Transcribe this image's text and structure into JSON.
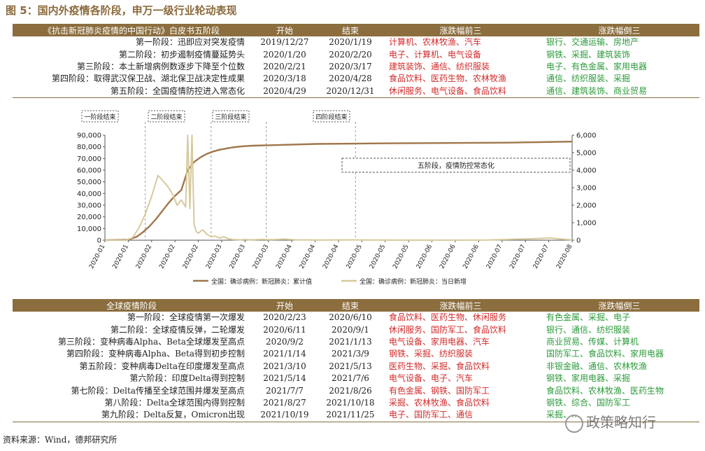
{
  "figure_title": "图 5：国内外疫情各阶段，申万一级行业轮动表现",
  "table1": {
    "headers": [
      "《抗击新冠肺炎疫情的中国行动》白皮书五阶段",
      "开始",
      "结束",
      "涨跌幅前三",
      "涨跌幅倒三"
    ],
    "rows": [
      {
        "phase": "第一阶段：迅即应对突发疫情",
        "start": "2019/12/27",
        "end": "2020/1/19",
        "top3": "计算机、农林牧渔、汽车",
        "bottom3": "银行、交通运输、房地产"
      },
      {
        "phase": "第二阶段：初步遏制疫情蔓延势头",
        "start": "2020/1/20",
        "end": "2020/2/20",
        "top3": "电子、计算机、电气设备",
        "bottom3": "钢铁、采掘、建筑装饰"
      },
      {
        "phase": "第三阶段：本土新增病例数逐步下降至个位数",
        "start": "2020/2/21",
        "end": "2020/3/17",
        "top3": "建筑装饰、通信、纺织服装",
        "bottom3": "电子、有色金属、家用电器"
      },
      {
        "phase": "第四阶段：取得武汉保卫战、湖北保卫战决定性成果",
        "start": "2020/3/18",
        "end": "2020/4/28",
        "top3": "食品饮料、医药生物、农林牧渔",
        "bottom3": "通信、纺织服装、采掘"
      },
      {
        "phase": "第五阶段：全国疫情防控进入常态化",
        "start": "2020/4/29",
        "end": "2020/12/31",
        "top3": "休闲服务、电气设备、食品饮料",
        "bottom3": "通信、建筑装饰、商业贸易"
      }
    ]
  },
  "table2": {
    "headers": [
      "全球疫情阶段",
      "开始",
      "结束",
      "涨跌幅前三",
      "涨跌幅倒三"
    ],
    "rows": [
      {
        "phase": "第一阶段：全球疫情第一次爆发",
        "start": "2020/2/23",
        "end": "2020/6/10",
        "top3": "食品饮料、医药生物、休闲服务",
        "bottom3": "有色金属、采掘、电子"
      },
      {
        "phase": "第二阶段：全球疫情反弹，二轮爆发",
        "start": "2020/6/11",
        "end": "2020/9/1",
        "top3": "休闲服务、国防军工、食品饮料",
        "bottom3": "银行、通信、纺织服装"
      },
      {
        "phase": "第三阶段：变种病毒Alpha、Beta全球爆发至高点",
        "start": "2020/9/2",
        "end": "2021/1/13",
        "top3": "电气设备、家用电器、汽车",
        "bottom3": "商业贸易、传媒、计算机"
      },
      {
        "phase": "第四阶段：变种病毒Alpha、Beta得到初步控制",
        "start": "2021/1/14",
        "end": "2021/3/9",
        "top3": "钢铁、采掘、纺织服装",
        "bottom3": "国防军工、食品饮料、家用电器"
      },
      {
        "phase": "第五阶段：变种病毒Delta在印度爆发至高点",
        "start": "2021/3/10",
        "end": "2021/5/13",
        "top3": "医药生物、采掘、食品饮料",
        "bottom3": "非银金融、通信、农林牧渔"
      },
      {
        "phase": "第六阶段：印度Delta得到控制",
        "start": "2021/5/14",
        "end": "2021/7/6",
        "top3": "电气设备、电子、汽车",
        "bottom3": "钢铁、家用电器、采掘"
      },
      {
        "phase": "第七阶段：Delta传播至全球范围并爆发至高点",
        "start": "2021/7/7",
        "end": "2021/8/26",
        "top3": "有色金属、钢铁、国防军工",
        "bottom3": "食品饮料、农林牧渔、医药生物"
      },
      {
        "phase": "第八阶段：Delta全球范围内得到控制",
        "start": "2021/8/27",
        "end": "2021/10/18",
        "top3": "采掘、农林牧渔、食品饮料",
        "bottom3": "钢铁、综合、国防军工"
      },
      {
        "phase": "第九阶段：Delta反复，Omicron出现",
        "start": "2021/10/19",
        "end": "2021/11/25",
        "top3": "电子、国防军工、通信",
        "bottom3": "采掘、…"
      }
    ]
  },
  "chart_data": {
    "type": "line",
    "title": "",
    "x_tick_labels": [
      "2020-01",
      "2020-01",
      "2020-02",
      "2020-02",
      "2020-02",
      "2020-03",
      "2020-03",
      "2020-03",
      "2020-04",
      "2020-04",
      "2020-04",
      "2020-05",
      "2020-05",
      "2020-05",
      "2020-06",
      "2020-06",
      "2020-06",
      "2020-07",
      "2020-07",
      "2020-07",
      "2020-08"
    ],
    "left_axis": {
      "ylim": [
        0,
        90000
      ],
      "ticks": [
        "0",
        "10,000",
        "20,000",
        "30,000",
        "40,000",
        "50,000",
        "60,000",
        "70,000",
        "80,000",
        "90,000"
      ]
    },
    "right_axis": {
      "ylim": [
        0,
        6000
      ],
      "ticks": [
        "0",
        "1,000",
        "2,000",
        "3,000",
        "4,000",
        "5,000",
        "6,000"
      ]
    },
    "x_range_days": [
      0,
      220
    ],
    "series": [
      {
        "name": "全国：确诊病例：新冠肺炎：累计值",
        "axis": "left",
        "color": "#a0764a",
        "x": [
          0,
          10,
          12,
          15,
          18,
          21,
          24,
          27,
          30,
          33,
          36,
          39,
          42,
          45,
          48,
          51,
          54,
          57,
          60,
          65,
          70,
          80,
          100,
          130,
          160,
          190,
          220
        ],
        "y": [
          50,
          300,
          1000,
          3000,
          7000,
          12000,
          18000,
          25000,
          32000,
          38000,
          43000,
          60000,
          67000,
          71000,
          74000,
          76000,
          77500,
          78500,
          79500,
          80500,
          81000,
          81500,
          82500,
          83000,
          83300,
          83600,
          84500
        ]
      },
      {
        "name": "全国：确诊病例：新冠肺炎：当日新增",
        "axis": "right",
        "color": "#d7c99c",
        "x": [
          0,
          10,
          13,
          16,
          19,
          22,
          25,
          28,
          30,
          32,
          34,
          36,
          38,
          39,
          40,
          41,
          42,
          43,
          44,
          46,
          48,
          50,
          52,
          54,
          56,
          58,
          60,
          62,
          64,
          66,
          68,
          70,
          74,
          78,
          85,
          90,
          100,
          110,
          140,
          180,
          200,
          210,
          215,
          220
        ],
        "y": [
          0,
          5,
          150,
          700,
          1500,
          2500,
          3700,
          3300,
          3000,
          2600,
          2000,
          2300,
          1900,
          6000,
          1800,
          6000,
          900,
          500,
          400,
          600,
          350,
          200,
          230,
          120,
          200,
          80,
          40,
          30,
          20,
          40,
          20,
          25,
          50,
          30,
          60,
          20,
          10,
          15,
          5,
          10,
          80,
          130,
          60,
          20
        ]
      }
    ],
    "phase_markers": [
      "一阶段结束",
      "二阶段结束",
      "三阶段结束",
      "四阶段结束"
    ],
    "annotation": "五阶段，疫情防控常态化",
    "grid": false
  },
  "source": "资料来源：Wind，德邦研究所",
  "watermark": "政策略知行"
}
